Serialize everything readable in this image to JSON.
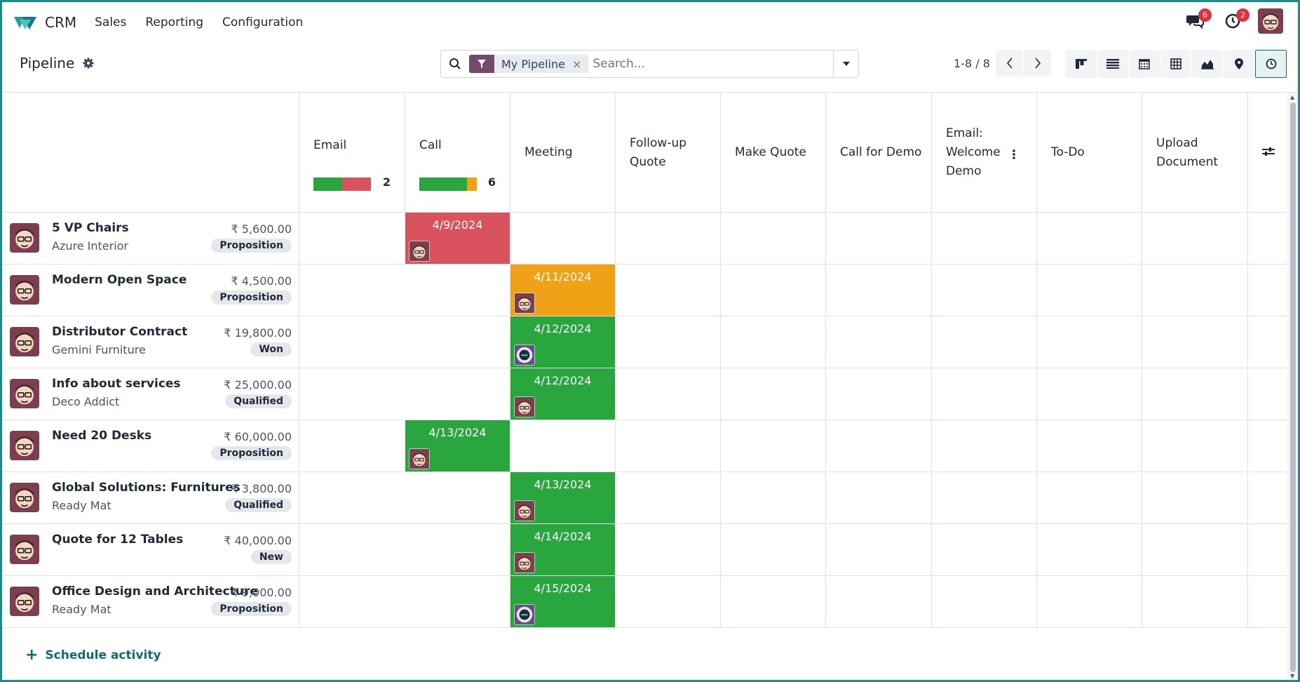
{
  "navbar": {
    "app_name": "CRM",
    "menu": [
      "Sales",
      "Reporting",
      "Configuration"
    ],
    "messages_count": "6",
    "activities_count": "2"
  },
  "control": {
    "title": "Pipeline",
    "facet_label": "My Pipeline",
    "facet_remove": "×",
    "search_placeholder": "Search...",
    "pager": "1-8 / 8",
    "views": [
      "kanban-icon",
      "list-icon",
      "calendar-icon",
      "pivot-icon",
      "graph-icon",
      "map-icon",
      "activity-icon"
    ]
  },
  "columns": [
    {
      "label": "Email",
      "progress": {
        "green": 0.5,
        "red": 0.5,
        "orange": 0
      },
      "count": "2"
    },
    {
      "label": "Call",
      "progress": {
        "green": 0.83,
        "red": 0,
        "orange": 0.17
      },
      "count": "6"
    },
    {
      "label": "Meeting"
    },
    {
      "label": "Follow-up Quote"
    },
    {
      "label": "Make Quote"
    },
    {
      "label": "Call for Demo"
    },
    {
      "label": "Email: Welcome Demo"
    },
    {
      "label": "To-Do"
    },
    {
      "label": "Upload Document"
    }
  ],
  "rows": [
    {
      "name": "5 VP Chairs",
      "partner": "Azure Interior",
      "amount": "₹ 5,600.00",
      "stage": "Proposition",
      "activity": {
        "col": 0,
        "date": "4/9/2024",
        "status": "overdue",
        "avatar": "user"
      }
    },
    {
      "name": "Modern Open Space",
      "partner": "",
      "amount": "₹ 4,500.00",
      "stage": "Proposition",
      "activity": {
        "col": 1,
        "date": "4/11/2024",
        "status": "today",
        "avatar": "user"
      }
    },
    {
      "name": "Distributor Contract",
      "partner": "Gemini Furniture",
      "amount": "₹ 19,800.00",
      "stage": "Won",
      "activity": {
        "col": 1,
        "date": "4/12/2024",
        "status": "planned",
        "avatar": "bot"
      }
    },
    {
      "name": "Info about services",
      "partner": "Deco Addict",
      "amount": "₹ 25,000.00",
      "stage": "Qualified",
      "activity": {
        "col": 1,
        "date": "4/12/2024",
        "status": "planned",
        "avatar": "user"
      }
    },
    {
      "name": "Need 20 Desks",
      "partner": "",
      "amount": "₹ 60,000.00",
      "stage": "Proposition",
      "activity": {
        "col": 0,
        "date": "4/13/2024",
        "status": "planned",
        "avatar": "user"
      }
    },
    {
      "name": "Global Solutions: Furnitures",
      "partner": "Ready Mat",
      "amount": "₹ 3,800.00",
      "stage": "Qualified",
      "activity": {
        "col": 1,
        "date": "4/13/2024",
        "status": "planned",
        "avatar": "user"
      }
    },
    {
      "name": "Quote for 12 Tables",
      "partner": "",
      "amount": "₹ 40,000.00",
      "stage": "New",
      "activity": {
        "col": 1,
        "date": "4/14/2024",
        "status": "planned",
        "avatar": "user"
      }
    },
    {
      "name": "Office Design and Architecture",
      "partner": "Ready Mat",
      "amount": "₹ 9,000.00",
      "stage": "Proposition",
      "activity": {
        "col": 1,
        "date": "4/15/2024",
        "status": "planned",
        "avatar": "bot"
      }
    }
  ],
  "footer": {
    "schedule_label": "Schedule activity"
  },
  "colors": {
    "overdue": "#d9525e",
    "today": "#f0a216",
    "planned": "#2aa63f",
    "accent": "#0d6e6e",
    "brand": "#714b67"
  }
}
